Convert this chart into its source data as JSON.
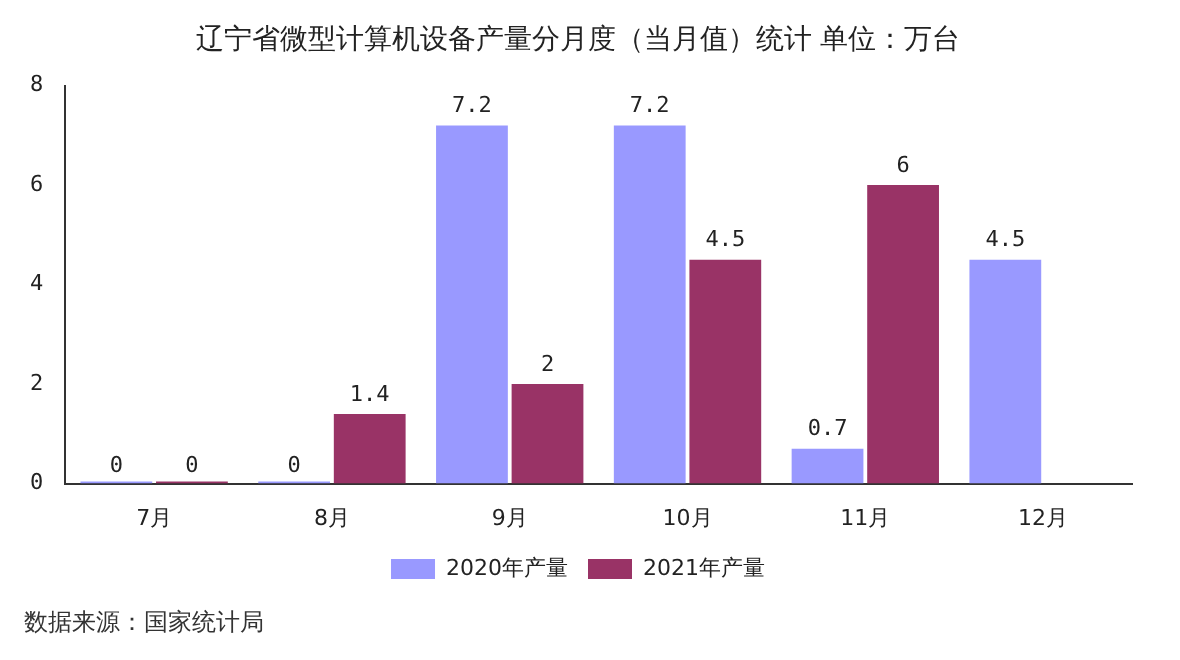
{
  "chart_data": {
    "type": "bar",
    "title": "辽宁省微型计算机设备产量分月度（当月值）统计 单位：万台",
    "categories": [
      "7月",
      "8月",
      "9月",
      "10月",
      "11月",
      "12月"
    ],
    "series": [
      {
        "name": "2020年产量",
        "color": "#9999ff",
        "values": [
          0,
          0,
          7.2,
          7.2,
          0.7,
          4.5
        ]
      },
      {
        "name": "2021年产量",
        "color": "#993366",
        "values": [
          0,
          1.4,
          2,
          4.5,
          6,
          null
        ]
      }
    ],
    "ylim": [
      0,
      8
    ],
    "yticks": [
      0,
      2,
      4,
      6,
      8
    ],
    "grid": false,
    "legend": "bottom",
    "data_labels": true,
    "annotations": [
      "数据来源：国家统计局"
    ]
  }
}
